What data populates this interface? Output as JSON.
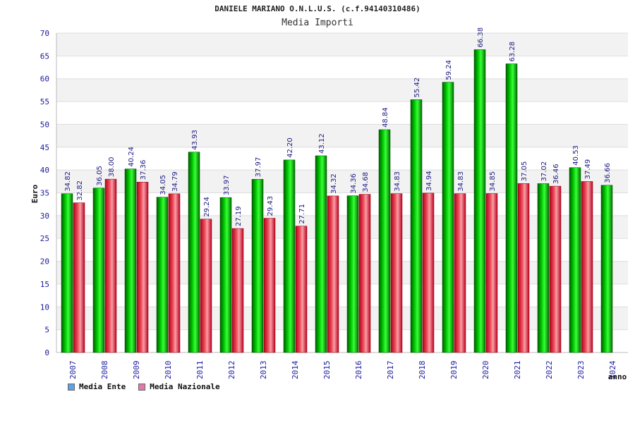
{
  "chart_data": {
    "type": "bar",
    "title": "DANIELE MARIANO O.N.L.U.S. (c.f.94140310486)",
    "subtitle": "Media Importi",
    "ylabel": "Euro",
    "xlabel": "anno",
    "ylim": [
      0,
      70
    ],
    "yticks": [
      0,
      5,
      10,
      15,
      20,
      25,
      30,
      35,
      40,
      45,
      50,
      55,
      60,
      65,
      70
    ],
    "grid": true,
    "legend_position": "bottom-left",
    "categories": [
      "2007",
      "2008",
      "2009",
      "2010",
      "2011",
      "2012",
      "2013",
      "2014",
      "2015",
      "2016",
      "2017",
      "2018",
      "2019",
      "2020",
      "2021",
      "2022",
      "2023",
      "2024"
    ],
    "series": [
      {
        "name": "Media Ente",
        "color": "#00b000",
        "legend_color": "#5fa0e6",
        "values": [
          34.82,
          36.05,
          40.24,
          34.05,
          43.93,
          33.97,
          37.97,
          42.2,
          43.12,
          34.36,
          48.84,
          55.42,
          59.24,
          66.38,
          63.28,
          37.02,
          40.53,
          36.66
        ],
        "labels": [
          "34.82",
          "36.05",
          "40.24",
          "34.05",
          "43.93",
          "33.97",
          "37.97",
          "42.20",
          "43.12",
          "34.36",
          "48.84",
          "55.42",
          "59.24",
          "66.38",
          "63.28",
          "37.02",
          "40.53",
          "36.66"
        ]
      },
      {
        "name": "Media Nazionale",
        "color": "#e0283a",
        "legend_color": "#e07aa8",
        "values": [
          32.82,
          38.0,
          37.36,
          34.79,
          29.24,
          27.19,
          29.43,
          27.71,
          34.32,
          34.68,
          34.83,
          34.94,
          34.83,
          34.85,
          37.05,
          36.46,
          37.49,
          null
        ],
        "labels": [
          "32.82",
          "38.00",
          "37.36",
          "34.79",
          "29.24",
          "27.19",
          "29.43",
          "27.71",
          "34.32",
          "34.68",
          "34.83",
          "34.94",
          "34.83",
          "34.85",
          "37.05",
          "36.46",
          "37.49",
          ""
        ]
      }
    ]
  }
}
